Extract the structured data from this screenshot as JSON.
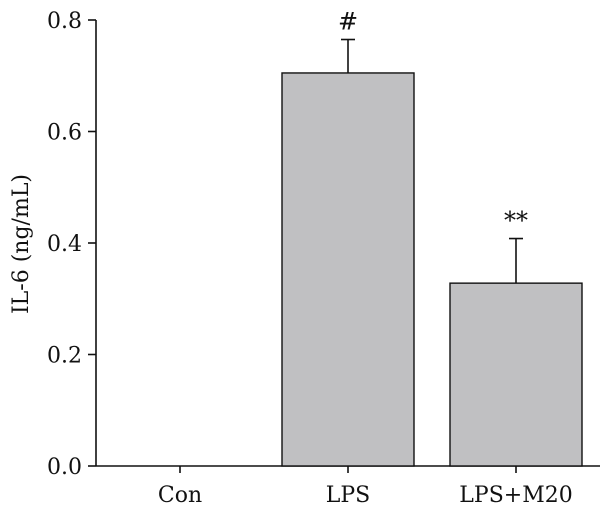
{
  "chart_data": {
    "type": "bar",
    "title": "",
    "xlabel": "",
    "ylabel": "IL-6 (ng/mL)",
    "ylim": [
      0,
      0.8
    ],
    "yticks": [
      0.0,
      0.2,
      0.4,
      0.6,
      0.8
    ],
    "ytick_labels": [
      "0.0",
      "0.2",
      "0.4",
      "0.6",
      "0.8"
    ],
    "categories": [
      "Con",
      "LPS",
      "LPS+M20"
    ],
    "values": [
      0.0,
      0.705,
      0.328
    ],
    "errors": [
      0.0,
      0.06,
      0.08
    ],
    "annotations": [
      "",
      "#",
      "**"
    ],
    "grid": false,
    "bar_color": "#c0c0c2"
  }
}
